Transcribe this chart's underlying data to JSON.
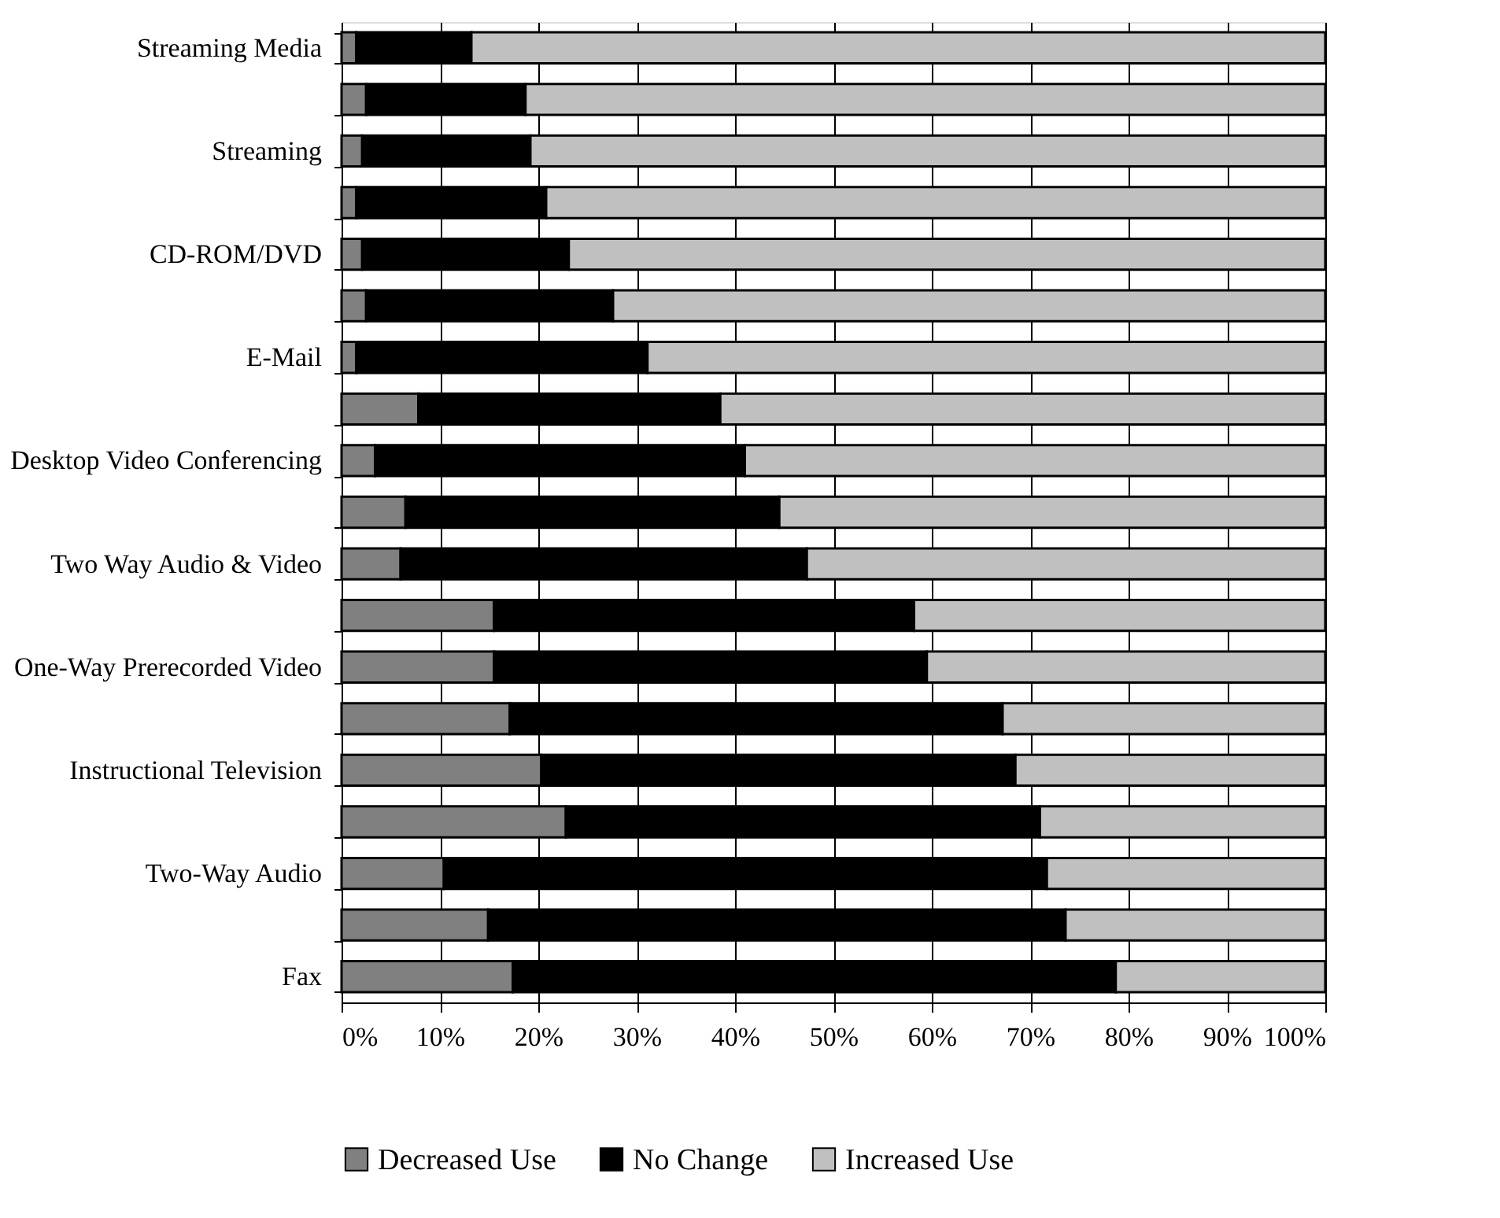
{
  "chart_data": {
    "type": "bar",
    "orientation": "horizontal",
    "stacked": true,
    "categories": [
      "Streaming Media",
      null,
      "Streaming",
      null,
      "CD-ROM/DVD",
      null,
      "E-Mail",
      null,
      "Desktop Video Conferencing",
      null,
      "Two Way Audio & Video",
      null,
      "One-Way Prerecorded Video",
      null,
      "Instructional Television",
      null,
      "Two-Way Audio",
      null,
      "Fax"
    ],
    "series": [
      {
        "name": "Decreased Use",
        "color": "#808080",
        "values": [
          1.5,
          2.5,
          2.1,
          1.5,
          2.1,
          2.5,
          1.5,
          7.8,
          3.4,
          6.5,
          6.0,
          15.5,
          15.5,
          17.1,
          20.3,
          22.8,
          10.4,
          14.9,
          17.4
        ]
      },
      {
        "name": "No Change",
        "color": "#000000",
        "values": [
          11.7,
          16.2,
          17.1,
          19.3,
          21.0,
          25.1,
          29.6,
          30.7,
          37.6,
          38.0,
          41.3,
          42.7,
          44.0,
          50.1,
          48.2,
          48.2,
          61.3,
          58.7,
          61.3
        ]
      },
      {
        "name": "Increased Use",
        "color": "#c0c0c0",
        "values": [
          86.8,
          81.3,
          80.8,
          79.2,
          76.9,
          72.4,
          68.9,
          61.5,
          59.0,
          55.5,
          52.7,
          41.8,
          40.5,
          32.8,
          31.5,
          29.0,
          28.3,
          26.4,
          21.3
        ]
      }
    ],
    "xlim": [
      0,
      100
    ],
    "xticks": [
      {
        "value": 0,
        "label": "0%"
      },
      {
        "value": 10,
        "label": "10%"
      },
      {
        "value": 20,
        "label": "20%"
      },
      {
        "value": 30,
        "label": "30%"
      },
      {
        "value": 40,
        "label": "40%"
      },
      {
        "value": 50,
        "label": "50%"
      },
      {
        "value": 60,
        "label": "60%"
      },
      {
        "value": 70,
        "label": "70%"
      },
      {
        "value": 80,
        "label": "80%"
      },
      {
        "value": 90,
        "label": "90%"
      },
      {
        "value": 100,
        "label": "100%"
      }
    ],
    "grid": "x",
    "legend": "bottom"
  }
}
